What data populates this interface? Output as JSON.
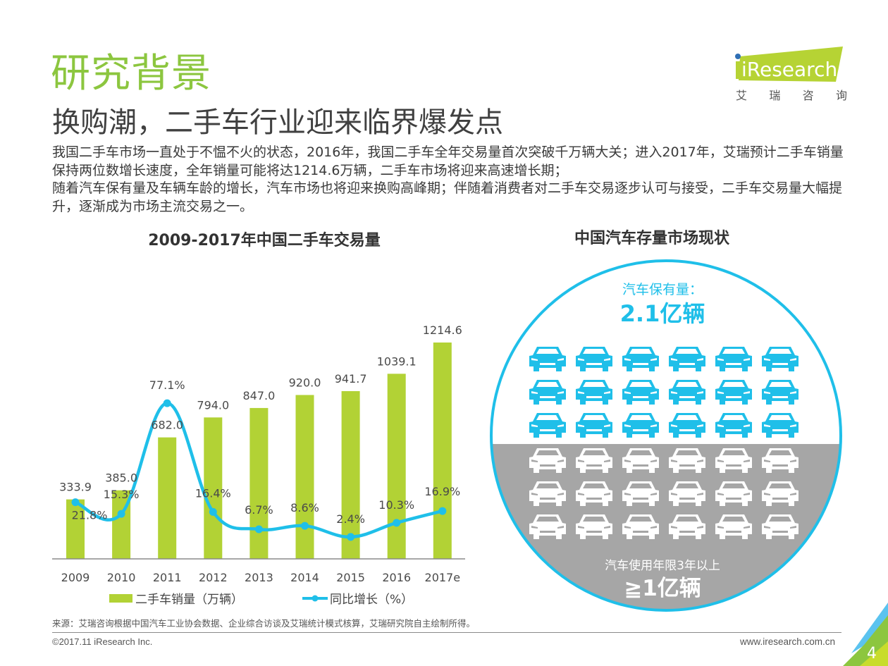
{
  "header": {
    "title": "研究背景",
    "subtitle": "换购潮，二手车行业迎来临界爆发点",
    "logo_text": "iResearch",
    "logo_cn": [
      "艾",
      "瑞",
      "咨",
      "询"
    ]
  },
  "intro": {
    "paragraphs": [
      "我国二手车市场一直处于不愠不火的状态，2016年，我国二手车全年交易量首次突破千万辆大关；进入2017年，艾瑞预计二手车销量保持两位数增长速度，全年销量可能将达1214.6万辆，二手车市场将迎来高速增长期；",
      "随着汽车保有量及车辆车龄的增长，汽车市场也将迎来换购高峰期；伴随着消费者对二手车交易逐步认可与接受，二手车交易量大幅提升，逐渐成为市场主流交易之一。"
    ]
  },
  "chart_data": [
    {
      "type": "bar",
      "title": "2009-2017年中国二手车交易量",
      "xlabel": "",
      "ylabel": "",
      "categories": [
        "2009",
        "2010",
        "2011",
        "2012",
        "2013",
        "2014",
        "2015",
        "2016",
        "2017e"
      ],
      "series": [
        {
          "name": "二手车销量（万辆）",
          "type": "bar",
          "color": "#b2d235",
          "values": [
            333.9,
            385.0,
            682.0,
            794.0,
            847.0,
            920.0,
            941.7,
            1039.1,
            1214.6
          ],
          "labels": [
            "333.9",
            "385.0",
            "682.0",
            "794.0",
            "847.0",
            "920.0",
            "941.7",
            "1039.1",
            "1214.6"
          ]
        },
        {
          "name": "同比增长（%）",
          "type": "line",
          "color": "#1fbfe9",
          "values": [
            21.8,
            15.3,
            77.1,
            16.4,
            6.7,
            8.6,
            2.4,
            10.3,
            16.9
          ],
          "labels": [
            "21.8%",
            "15.3%",
            "77.1%",
            "16.4%",
            "6.7%",
            "8.6%",
            "2.4%",
            "10.3%",
            "16.9%"
          ]
        }
      ],
      "legend": {
        "position": "bottom",
        "entries": [
          "二手车销量（万辆）",
          "同比增长（%）"
        ]
      },
      "grid": false,
      "ylim": [
        0,
        1214.6
      ]
    }
  ],
  "infographic": {
    "title": "中国汽车存量市场现状",
    "total_label": "汽车保有量：",
    "total_value": "2.1亿辆",
    "aged_label": "汽车使用年限3年以上",
    "aged_value": "≧1亿辆",
    "car_icon_rows_blue": 3,
    "car_icon_rows_gray": 3,
    "cars_per_row": 6,
    "colors": {
      "accent_blue": "#1fbfe9",
      "gray_fill": "#a6a6a6"
    }
  },
  "footer": {
    "source": "来源：艾瑞咨询根据中国汽车工业协会数据、企业综合访谈及艾瑞统计模式核算，艾瑞研究院自主绘制所得。",
    "copyright": "©2017.11 iResearch Inc.",
    "website": "www.iresearch.com.cn",
    "page_number": "4"
  },
  "colors": {
    "brand_green": "#8cc63f",
    "bar_green": "#b2d235",
    "line_blue": "#1fbfe9"
  }
}
